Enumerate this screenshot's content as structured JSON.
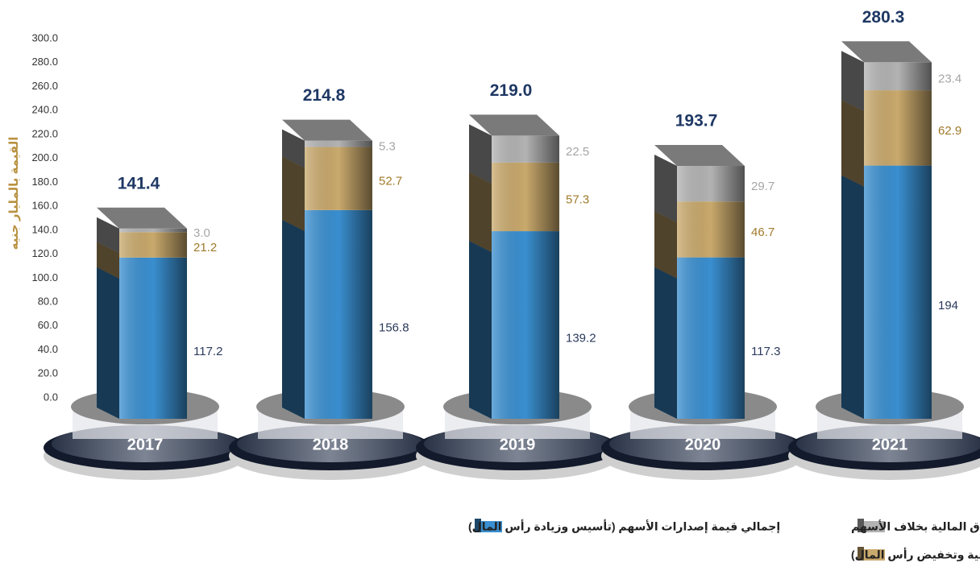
{
  "chart_data": {
    "type": "bar",
    "stacked": true,
    "y_label": "القيمة بالمليار جنيه",
    "categories": [
      "2017",
      "2018",
      "2019",
      "2020",
      "2021"
    ],
    "series": [
      {
        "name": "إجمالي قيمة إصدارات الأسهم (تأسيس وزيادة رأس المال)",
        "color": "#3a8fd0",
        "values": [
          117.2,
          156.8,
          139.2,
          117.3,
          194
        ]
      },
      {
        "name": "إجمالي (تعديل قيمة اسمية وتخفيض رأس المال)",
        "color": "#c9a96c",
        "values": [
          21.2,
          52.7,
          57.3,
          46.7,
          62.9
        ]
      },
      {
        "name": "إجمالي قيمة إصدارات الاوراق المالية بخلاف الأسهم",
        "color": "#b3b3b3",
        "values": [
          3.0,
          5.3,
          22.5,
          29.7,
          23.4
        ],
        "value_labels": [
          "3.0",
          "5.3",
          "22.5",
          "29.7",
          "23.4"
        ]
      }
    ],
    "totals": [
      141.4,
      214.8,
      219.0,
      193.7,
      280.3
    ],
    "total_labels": [
      "141.4",
      "214.8",
      "219.0",
      "193.7",
      "280.3"
    ],
    "ylim": [
      0,
      300
    ],
    "yticks": [
      {
        "value": 0,
        "label": "0.0"
      },
      {
        "value": 20,
        "label": "20.0"
      },
      {
        "value": 40,
        "label": "40.0"
      },
      {
        "value": 60,
        "label": "60.0"
      },
      {
        "value": 80,
        "label": "80.0"
      },
      {
        "value": 100,
        "label": "100.0"
      },
      {
        "value": 120,
        "label": "120.0"
      },
      {
        "value": 140,
        "label": "140.0"
      },
      {
        "value": 160,
        "label": "160.0"
      },
      {
        "value": 180,
        "label": "180.0"
      },
      {
        "value": 200,
        "label": "200.0"
      },
      {
        "value": 220,
        "label": "220.0"
      },
      {
        "value": 240,
        "label": "240.0"
      },
      {
        "value": 260,
        "label": "260.0"
      },
      {
        "value": 280,
        "label": "280.0"
      },
      {
        "value": 300,
        "label": "300.0"
      }
    ],
    "grid": false
  }
}
